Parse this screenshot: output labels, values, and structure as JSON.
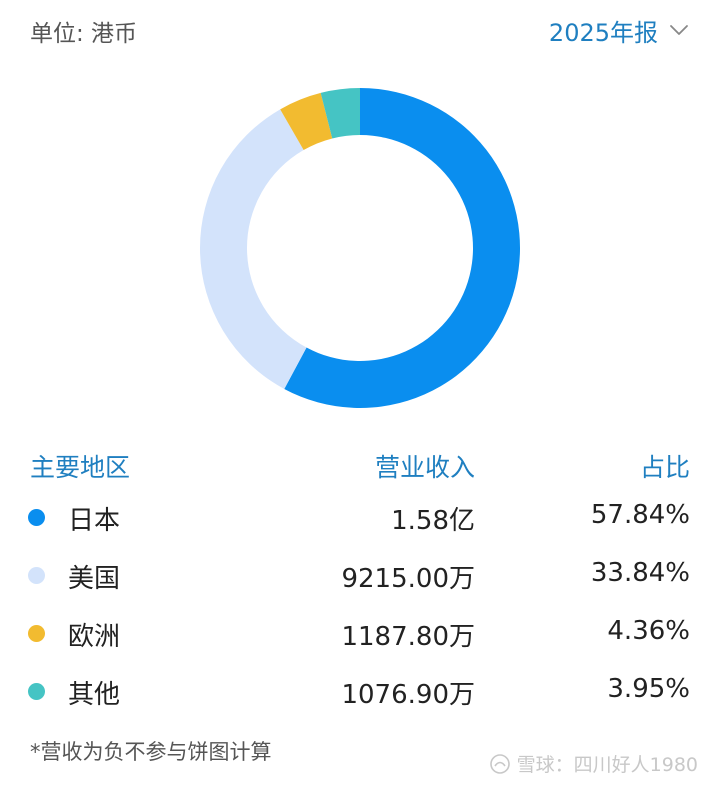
{
  "header": {
    "unit_label": "单位: 港币",
    "period_label": "2025年报"
  },
  "table": {
    "headers": {
      "region": "主要地区",
      "revenue": "营业收入",
      "share": "占比"
    }
  },
  "chart_data": {
    "type": "pie",
    "variant": "donut",
    "unit": "港币",
    "slices": [
      {
        "name": "日本",
        "revenue": "1.58亿",
        "share_label": "57.84%",
        "value": 57.84,
        "color": "#0a8eef"
      },
      {
        "name": "美国",
        "revenue": "9215.00万",
        "share_label": "33.84%",
        "value": 33.84,
        "color": "#d3e3fb"
      },
      {
        "name": "欧洲",
        "revenue": "1187.80万",
        "share_label": "4.36%",
        "value": 4.36,
        "color": "#f2bb30"
      },
      {
        "name": "其他",
        "revenue": "1076.90万",
        "share_label": "3.95%",
        "value": 3.95,
        "color": "#45c4c4"
      }
    ]
  },
  "footnote": "*营收为负不参与饼图计算",
  "watermark": "雪球：四川好人1980"
}
